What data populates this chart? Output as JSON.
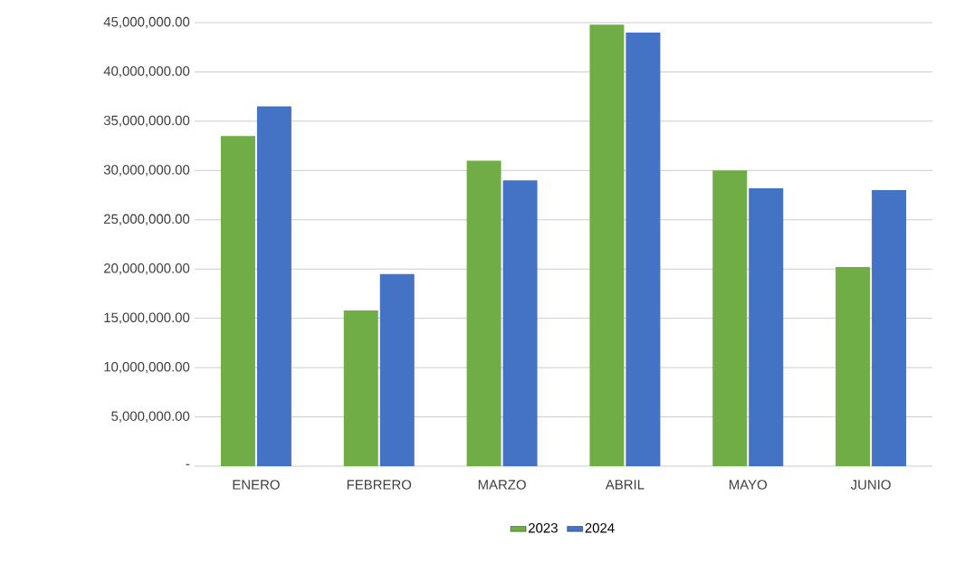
{
  "chart_data": {
    "type": "bar",
    "categories": [
      "ENERO",
      "FEBRERO",
      "MARZO",
      "ABRIL",
      "MAYO",
      "JUNIO"
    ],
    "series": [
      {
        "name": "2023",
        "color": "#70ad47",
        "values": [
          33500000,
          15800000,
          31000000,
          44800000,
          30000000,
          20200000
        ]
      },
      {
        "name": "2024",
        "color": "#4472c4",
        "values": [
          36500000,
          19500000,
          29000000,
          44000000,
          28200000,
          28000000
        ]
      }
    ],
    "ylim": [
      0,
      45000000
    ],
    "yticks": [
      {
        "value": 0,
        "label": "-"
      },
      {
        "value": 5000000,
        "label": "5,000,000.00"
      },
      {
        "value": 10000000,
        "label": "10,000,000.00"
      },
      {
        "value": 15000000,
        "label": "15,000,000.00"
      },
      {
        "value": 20000000,
        "label": "20,000,000.00"
      },
      {
        "value": 25000000,
        "label": "25,000,000.00"
      },
      {
        "value": 30000000,
        "label": "30,000,000.00"
      },
      {
        "value": 35000000,
        "label": "35,000,000.00"
      },
      {
        "value": 40000000,
        "label": "40,000,000.00"
      },
      {
        "value": 45000000,
        "label": "45,000,000.00"
      }
    ],
    "grid": "y",
    "legend": "bottom"
  }
}
